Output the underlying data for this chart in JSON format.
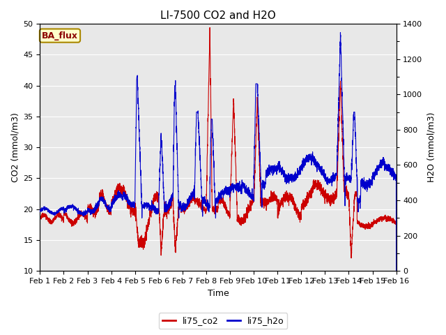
{
  "title": "LI-7500 CO2 and H2O",
  "ylabel_left": "CO2 (mmol/m3)",
  "ylabel_right": "H2O (mmol/m3)",
  "xlabel": "Time",
  "ylim_left": [
    10,
    50
  ],
  "ylim_right": [
    0,
    1400
  ],
  "yticks_left": [
    10,
    15,
    20,
    25,
    30,
    35,
    40,
    45,
    50
  ],
  "yticks_right": [
    0,
    200,
    400,
    600,
    800,
    1000,
    1200,
    1400
  ],
  "yticks_right_minor": [
    100,
    300,
    500,
    700,
    900,
    1100,
    1300
  ],
  "date_labels": [
    "Feb 1",
    "Feb 2",
    "Feb 3",
    "Feb 4",
    "Feb 5",
    "Feb 6",
    "Feb 7",
    "Feb 8",
    "Feb 9",
    "Feb 10",
    "Feb 11",
    "Feb 12",
    "Feb 13",
    "Feb 14",
    "Feb 15",
    "Feb 16"
  ],
  "co2_color": "#cc0000",
  "h2o_color": "#0000cc",
  "line_width": 0.8,
  "bg_color": "#e8e8e8",
  "label_box_text": "BA_flux",
  "label_box_bg": "#ffffcc",
  "label_box_border": "#aa8800",
  "legend_co2": "li75_co2",
  "legend_h2o": "li75_h2o",
  "title_fontsize": 11,
  "axis_fontsize": 9,
  "tick_fontsize": 8,
  "legend_fontsize": 9
}
